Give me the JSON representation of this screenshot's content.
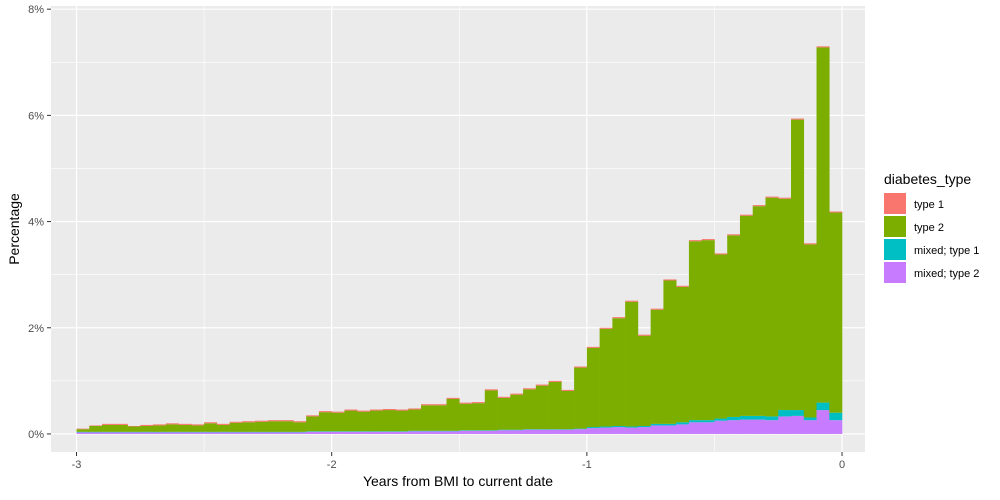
{
  "chart_data": {
    "type": "bar",
    "stacked": true,
    "xlabel": "Years from BMI to current date",
    "ylabel": "Percentage",
    "xlim": [
      -3.1,
      0.09
    ],
    "ylim": [
      -0.0034,
      0.0806
    ],
    "x_ticks": [
      -3,
      -2,
      -1,
      0
    ],
    "x_tick_labels": [
      "-3",
      "-2",
      "-1",
      "0"
    ],
    "y_ticks": [
      0,
      0.02,
      0.04,
      0.06,
      0.08
    ],
    "y_tick_labels": [
      "0%",
      "2%",
      "4%",
      "6%",
      "8%"
    ],
    "grid": true,
    "legend_position": "right",
    "legend_title": "diabetes_type",
    "bin_width": 0.05,
    "x": [
      -2.975,
      -2.925,
      -2.875,
      -2.825,
      -2.775,
      -2.725,
      -2.675,
      -2.625,
      -2.575,
      -2.525,
      -2.475,
      -2.425,
      -2.375,
      -2.325,
      -2.275,
      -2.225,
      -2.175,
      -2.125,
      -2.075,
      -2.025,
      -1.975,
      -1.925,
      -1.875,
      -1.825,
      -1.775,
      -1.725,
      -1.675,
      -1.625,
      -1.575,
      -1.525,
      -1.475,
      -1.425,
      -1.375,
      -1.325,
      -1.275,
      -1.225,
      -1.175,
      -1.125,
      -1.075,
      -1.025,
      -0.975,
      -0.925,
      -0.875,
      -0.825,
      -0.775,
      -0.725,
      -0.675,
      -0.625,
      -0.575,
      -0.525,
      -0.475,
      -0.425,
      -0.375,
      -0.325,
      -0.275,
      -0.225,
      -0.175,
      -0.125,
      -0.075,
      -0.025
    ],
    "series": [
      {
        "name": "mixed; type 2",
        "color": "#C77CFF",
        "values": [
          0.0003,
          0.0003,
          0.0003,
          0.0003,
          0.0003,
          0.0003,
          0.0003,
          0.0003,
          0.0003,
          0.0003,
          0.0003,
          0.0003,
          0.0003,
          0.0003,
          0.0003,
          0.0003,
          0.0003,
          0.0003,
          0.0004,
          0.0004,
          0.0004,
          0.0004,
          0.0004,
          0.0004,
          0.0004,
          0.0004,
          0.0005,
          0.0005,
          0.0005,
          0.0005,
          0.0006,
          0.0006,
          0.0006,
          0.0007,
          0.0007,
          0.0008,
          0.0008,
          0.0008,
          0.0008,
          0.0009,
          0.0011,
          0.0012,
          0.0013,
          0.0012,
          0.0013,
          0.0016,
          0.0016,
          0.0018,
          0.0022,
          0.0022,
          0.0025,
          0.0026,
          0.0027,
          0.0027,
          0.0026,
          0.0033,
          0.0034,
          0.0026,
          0.0045,
          0.0026
        ]
      },
      {
        "name": "mixed; type 1",
        "color": "#00BFC4",
        "values": [
          0.0001,
          0.0001,
          0.0001,
          0.0001,
          0.0001,
          0.0001,
          0.0001,
          0.0001,
          0.0001,
          0.0001,
          0.0001,
          0.0001,
          0.0001,
          0.0001,
          0.0001,
          0.0001,
          0.0001,
          0.0001,
          0.0001,
          0.0001,
          0.0001,
          0.0001,
          0.0001,
          0.0001,
          0.0001,
          0.0001,
          0.0001,
          0.0001,
          0.0001,
          0.0001,
          0.0001,
          0.0001,
          0.0001,
          0.0001,
          0.0001,
          0.0001,
          0.0001,
          0.0001,
          0.0001,
          0.0001,
          0.0002,
          0.0002,
          0.0002,
          0.0002,
          0.0002,
          0.0003,
          0.0003,
          0.0004,
          0.0004,
          0.0004,
          0.0004,
          0.0006,
          0.0007,
          0.0007,
          0.0007,
          0.0012,
          0.0011,
          0.0005,
          0.0014,
          0.0014
        ]
      },
      {
        "name": "type 2",
        "color": "#7CAE00",
        "values": [
          0.0005,
          0.0011,
          0.0013,
          0.0013,
          0.001,
          0.0011,
          0.0012,
          0.0014,
          0.0013,
          0.0012,
          0.0016,
          0.0013,
          0.0017,
          0.0018,
          0.0019,
          0.002,
          0.002,
          0.0018,
          0.0028,
          0.0036,
          0.0035,
          0.0039,
          0.0037,
          0.0039,
          0.004,
          0.0039,
          0.004,
          0.0048,
          0.0048,
          0.006,
          0.005,
          0.0051,
          0.0075,
          0.006,
          0.0066,
          0.0075,
          0.0082,
          0.0089,
          0.0072,
          0.0115,
          0.0149,
          0.0184,
          0.0203,
          0.0235,
          0.017,
          0.0215,
          0.027,
          0.0255,
          0.0337,
          0.0339,
          0.0309,
          0.0342,
          0.0377,
          0.0395,
          0.0412,
          0.0398,
          0.0547,
          0.0326,
          0.0669,
          0.0377
        ]
      },
      {
        "name": "type 1",
        "color": "#F8766D",
        "values": [
          0.0001,
          0.0001,
          0.0002,
          0.0002,
          0.0001,
          0.0002,
          0.0002,
          0.0002,
          0.0002,
          0.0002,
          0.0002,
          0.0002,
          0.0002,
          0.0002,
          0.0002,
          0.0002,
          0.0002,
          0.0002,
          0.0002,
          0.0002,
          0.0002,
          0.0002,
          0.0002,
          0.0002,
          0.0002,
          0.0002,
          0.0002,
          0.0002,
          0.0002,
          0.0002,
          0.0002,
          0.0002,
          0.0002,
          0.0002,
          0.0002,
          0.0002,
          0.0002,
          0.0002,
          0.0002,
          0.0002,
          0.0002,
          0.0002,
          0.0002,
          0.0002,
          0.0002,
          0.0002,
          0.0002,
          0.0002,
          0.0002,
          0.0002,
          0.0002,
          0.0002,
          0.0002,
          0.0002,
          0.0002,
          0.0002,
          0.0002,
          0.0002,
          0.0002,
          0.0002
        ]
      }
    ],
    "legend": [
      {
        "label": "type 1",
        "color": "#F8766D"
      },
      {
        "label": "type 2",
        "color": "#7CAE00"
      },
      {
        "label": "mixed; type 1",
        "color": "#00BFC4"
      },
      {
        "label": "mixed; type 2",
        "color": "#C77CFF"
      }
    ]
  }
}
